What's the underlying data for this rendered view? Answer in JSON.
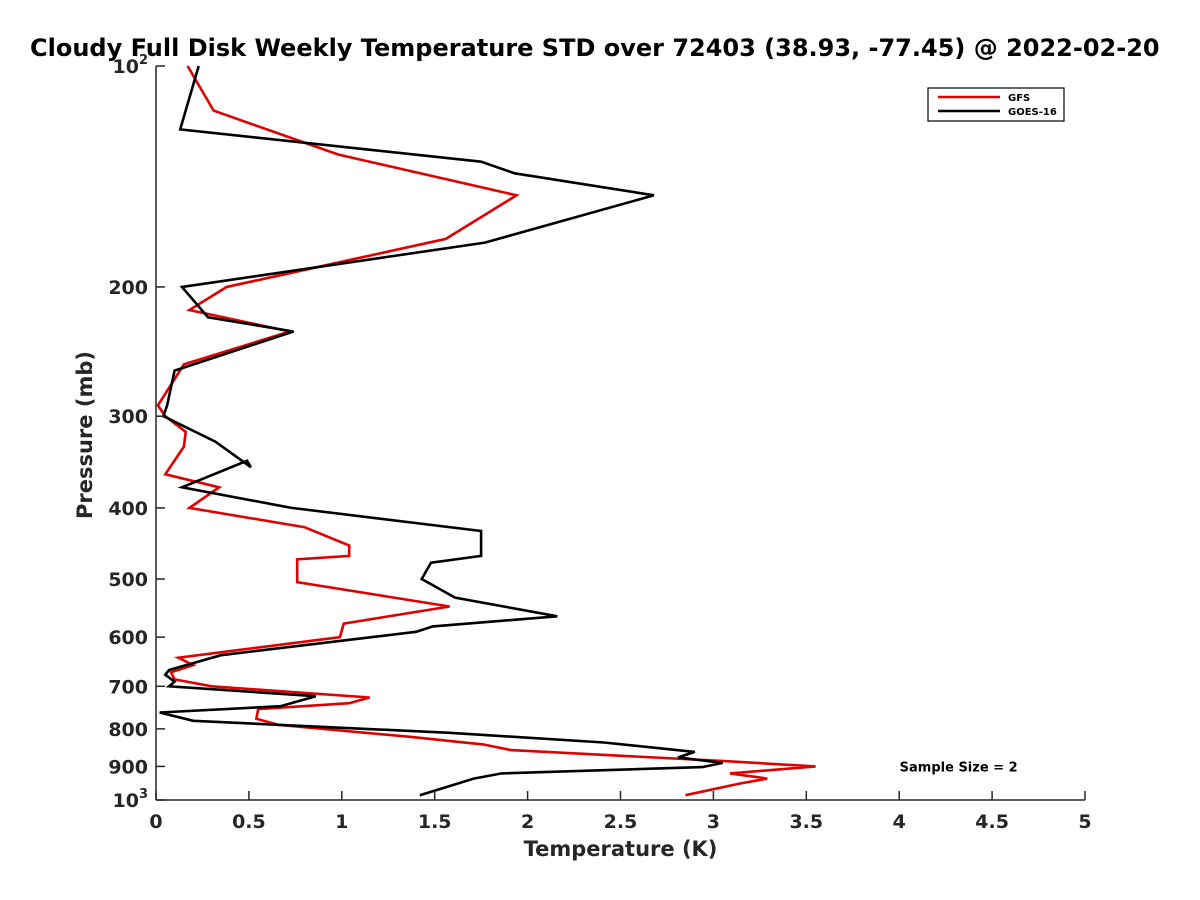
{
  "chart_data": {
    "type": "line",
    "title": "Cloudy Full Disk Weekly Temperature STD over 72403 (38.93, -77.45) @ 2022-02-20",
    "xlabel": "Temperature (K)",
    "ylabel": "Pressure (mb)",
    "xlim": [
      0,
      5
    ],
    "ylim": [
      1000,
      100
    ],
    "y_scale": "log",
    "y_reversed": true,
    "grid": false,
    "legend_position": "top-right",
    "annotation": "Sample Size = 2",
    "x_ticks": [
      {
        "value": 0,
        "label": "0"
      },
      {
        "value": 0.5,
        "label": "0.5"
      },
      {
        "value": 1,
        "label": "1"
      },
      {
        "value": 1.5,
        "label": "1.5"
      },
      {
        "value": 2,
        "label": "2"
      },
      {
        "value": 2.5,
        "label": "2.5"
      },
      {
        "value": 3,
        "label": "3"
      },
      {
        "value": 3.5,
        "label": "3.5"
      },
      {
        "value": 4,
        "label": "4"
      },
      {
        "value": 4.5,
        "label": "4.5"
      },
      {
        "value": 5,
        "label": "5"
      }
    ],
    "y_ticks": [
      {
        "value": 100,
        "base": "10",
        "exp": "2"
      },
      {
        "value": 200,
        "base": "200",
        "exp": ""
      },
      {
        "value": 300,
        "base": "300",
        "exp": ""
      },
      {
        "value": 400,
        "base": "400",
        "exp": ""
      },
      {
        "value": 500,
        "base": "500",
        "exp": ""
      },
      {
        "value": 600,
        "base": "600",
        "exp": ""
      },
      {
        "value": 700,
        "base": "700",
        "exp": ""
      },
      {
        "value": 800,
        "base": "800",
        "exp": ""
      },
      {
        "value": 900,
        "base": "900",
        "exp": ""
      },
      {
        "value": 1000,
        "base": "10",
        "exp": "3"
      }
    ],
    "series": [
      {
        "name": "GFS",
        "color": "#e00000",
        "points": [
          [
            0.17,
            100
          ],
          [
            0.31,
            115
          ],
          [
            0.98,
            132
          ],
          [
            1.94,
            150
          ],
          [
            1.56,
            172
          ],
          [
            0.38,
            200
          ],
          [
            0.18,
            215
          ],
          [
            0.72,
            230
          ],
          [
            0.15,
            255
          ],
          [
            0.01,
            290
          ],
          [
            0.05,
            300
          ],
          [
            0.16,
            315
          ],
          [
            0.15,
            330
          ],
          [
            0.05,
            360
          ],
          [
            0.34,
            375
          ],
          [
            0.18,
            400
          ],
          [
            0.8,
            425
          ],
          [
            1.04,
            450
          ],
          [
            1.04,
            465
          ],
          [
            0.76,
            470
          ],
          [
            0.76,
            505
          ],
          [
            1.58,
            545
          ],
          [
            1.01,
            575
          ],
          [
            0.99,
            600
          ],
          [
            0.12,
            640
          ],
          [
            0.2,
            655
          ],
          [
            0.08,
            670
          ],
          [
            0.1,
            685
          ],
          [
            0.3,
            700
          ],
          [
            1.15,
            725
          ],
          [
            1.04,
            738
          ],
          [
            0.55,
            752
          ],
          [
            0.54,
            775
          ],
          [
            0.66,
            790
          ],
          [
            1.36,
            820
          ],
          [
            1.76,
            840
          ],
          [
            1.91,
            855
          ],
          [
            3.06,
            885
          ],
          [
            3.55,
            900
          ],
          [
            3.09,
            920
          ],
          [
            3.29,
            935
          ],
          [
            3.14,
            950
          ],
          [
            2.85,
            985
          ]
        ]
      },
      {
        "name": "GOES-16",
        "color": "#000000",
        "points": [
          [
            0.23,
            100
          ],
          [
            0.13,
            122
          ],
          [
            1.75,
            135
          ],
          [
            1.93,
            140
          ],
          [
            2.68,
            150
          ],
          [
            1.77,
            174
          ],
          [
            0.14,
            200
          ],
          [
            0.28,
            220
          ],
          [
            0.74,
            230
          ],
          [
            0.1,
            260
          ],
          [
            0.06,
            290
          ],
          [
            0.04,
            300
          ],
          [
            0.32,
            325
          ],
          [
            0.51,
            352
          ],
          [
            0.49,
            345
          ],
          [
            0.14,
            375
          ],
          [
            0.73,
            400
          ],
          [
            1.75,
            430
          ],
          [
            1.75,
            465
          ],
          [
            1.48,
            475
          ],
          [
            1.43,
            500
          ],
          [
            1.61,
            530
          ],
          [
            2.16,
            562
          ],
          [
            1.49,
            580
          ],
          [
            1.4,
            590
          ],
          [
            0.35,
            635
          ],
          [
            0.07,
            665
          ],
          [
            0.05,
            675
          ],
          [
            0.1,
            690
          ],
          [
            0.07,
            700
          ],
          [
            0.86,
            722
          ],
          [
            0.67,
            745
          ],
          [
            0.02,
            760
          ],
          [
            0.2,
            780
          ],
          [
            1.58,
            810
          ],
          [
            2.41,
            835
          ],
          [
            2.9,
            860
          ],
          [
            2.81,
            875
          ],
          [
            3.05,
            890
          ],
          [
            2.94,
            902
          ],
          [
            1.86,
            920
          ],
          [
            1.71,
            935
          ],
          [
            1.42,
            985
          ]
        ]
      }
    ]
  }
}
